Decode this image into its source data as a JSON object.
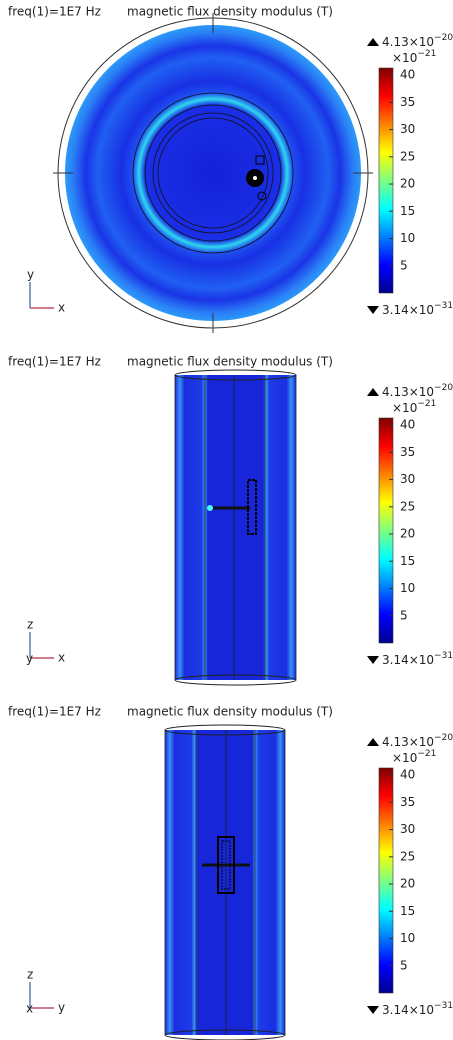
{
  "panels": [
    {
      "view": "top",
      "freq": "freq(1)=1E7 Hz",
      "quantity": "magnetic flux density modulus (T)",
      "colorbar": {
        "max": {
          "base": "4.13×10",
          "exp": "−20"
        },
        "scale": {
          "base": "×10",
          "exp": "−21"
        },
        "min": {
          "base": "3.14×10",
          "exp": "−31"
        },
        "ticks": [
          5,
          10,
          15,
          20,
          25,
          30,
          35,
          40
        ],
        "clim": [
          0,
          41.3
        ]
      },
      "axes": {
        "up": "y",
        "right": "x"
      }
    },
    {
      "view": "side-a",
      "freq": "freq(1)=1E7 Hz",
      "quantity": "magnetic flux density modulus (T)",
      "colorbar": {
        "max": {
          "base": "4.13×10",
          "exp": "−20"
        },
        "scale": {
          "base": "×10",
          "exp": "−21"
        },
        "min": {
          "base": "3.14×10",
          "exp": "−31"
        },
        "ticks": [
          5,
          10,
          15,
          20,
          25,
          30,
          35,
          40
        ],
        "clim": [
          0,
          41.3
        ]
      },
      "axes": {
        "up": "z",
        "out": "y",
        "right": "x"
      }
    },
    {
      "view": "side-b",
      "freq": "freq(1)=1E7 Hz",
      "quantity": "magnetic flux density modulus (T)",
      "colorbar": {
        "max": {
          "base": "4.13×10",
          "exp": "−20"
        },
        "scale": {
          "base": "×10",
          "exp": "−21"
        },
        "min": {
          "base": "3.14×10",
          "exp": "−31"
        },
        "ticks": [
          5,
          10,
          15,
          20,
          25,
          30,
          35,
          40
        ],
        "clim": [
          0,
          41.3
        ]
      },
      "axes": {
        "up": "z",
        "out": "x",
        "right": "y"
      }
    }
  ]
}
